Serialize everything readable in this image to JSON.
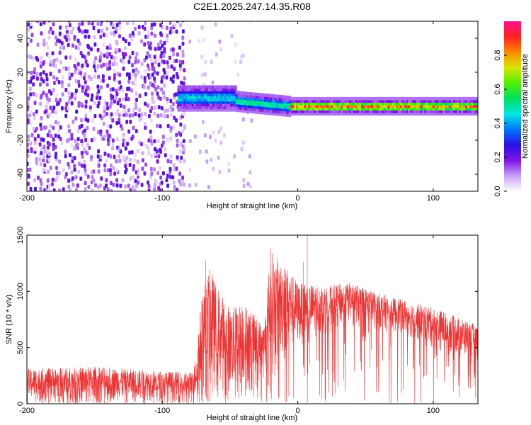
{
  "title": "C2E1.2025.247.14.35.R08",
  "chart_data": [
    {
      "type": "heatmap",
      "title": "C2E1.2025.247.14.35.R08",
      "xlabel": "Height of straight line (km)",
      "ylabel": "Frequency (Hz)",
      "xlim": [
        -200,
        133
      ],
      "ylim": [
        -50,
        50
      ],
      "xticks": [
        -200,
        -100,
        0,
        100
      ],
      "xtick_labels": [
        "-200",
        "-100",
        "0",
        "100"
      ],
      "yticks": [
        -40,
        -20,
        0,
        20,
        40
      ],
      "ytick_labels": [
        "-40",
        "-20",
        "0",
        "20",
        "40"
      ],
      "colorbar": {
        "label": "Normalized spectral amplitude",
        "range": [
          0.0,
          1.0
        ],
        "ticks": [
          0.0,
          0.2,
          0.4,
          0.6,
          0.8
        ],
        "tick_labels": [
          "0.0",
          "0.2",
          "0.4",
          "0.6",
          "0.8"
        ],
        "stops": [
          "#ffffff",
          "#c79ff7",
          "#7f14e5",
          "#2a10e8",
          "#0078ff",
          "#00e8e0",
          "#00e060",
          "#4ff000",
          "#d8e400",
          "#ff8800",
          "#ff2020",
          "#ff1190"
        ]
      },
      "regions": [
        {
          "name": "diffuse noise",
          "x": [
            -200,
            -85
          ],
          "frequency": [
            -50,
            50
          ],
          "amplitude": [
            0.0,
            0.25
          ]
        },
        {
          "name": "sparse noise",
          "x": [
            -85,
            -35
          ],
          "frequency": [
            -50,
            50
          ],
          "amplitude": [
            0.0,
            0.1
          ]
        },
        {
          "name": "wide band",
          "x": [
            -88,
            -45
          ],
          "center_frequency": 5,
          "half_width": 4,
          "amplitude": [
            0.2,
            0.5
          ]
        },
        {
          "name": "drifting band",
          "x": [
            -45,
            -5
          ],
          "center_frequency": [
            3,
            0
          ],
          "half_width": 3,
          "amplitude": [
            0.2,
            0.6
          ]
        },
        {
          "name": "steady line",
          "x": [
            -5,
            133
          ],
          "center_frequency": 0,
          "half_width": 2.5,
          "amplitude": [
            0.3,
            0.95
          ]
        }
      ]
    },
    {
      "type": "line",
      "xlabel": "Height of straight line (km)",
      "ylabel": "SNR (10 * v/v)",
      "xlim": [
        -200,
        133
      ],
      "ylim": [
        0,
        1500
      ],
      "xticks": [
        -200,
        -100,
        0,
        100
      ],
      "xtick_labels": [
        "-200",
        "-100",
        "0",
        "100"
      ],
      "yticks": [
        0,
        500,
        1000,
        1500
      ],
      "ytick_labels": [
        "0",
        "500",
        "1000",
        "1500"
      ],
      "color": "#ee3333",
      "envelope": {
        "x": [
          -200,
          -150,
          -100,
          -77,
          -70,
          -65,
          -60,
          -50,
          -40,
          -25,
          -20,
          -15,
          -10,
          0,
          20,
          40,
          60,
          80,
          100,
          120,
          133
        ],
        "upper": [
          310,
          330,
          290,
          280,
          1050,
          1200,
          1050,
          850,
          900,
          700,
          1380,
          1250,
          1250,
          1080,
          1050,
          1080,
          980,
          920,
          860,
          760,
          700
        ],
        "lower": [
          20,
          25,
          20,
          20,
          60,
          80,
          120,
          90,
          150,
          200,
          250,
          300,
          400,
          500,
          620,
          720,
          650,
          600,
          480,
          420,
          380
        ]
      },
      "peaks": [
        [
          -68,
          1280
        ],
        [
          -63,
          1150
        ],
        [
          -20,
          1380
        ],
        [
          -15,
          1300
        ],
        [
          -10,
          1200
        ],
        [
          7,
          1500
        ],
        [
          4,
          1260
        ]
      ]
    }
  ]
}
